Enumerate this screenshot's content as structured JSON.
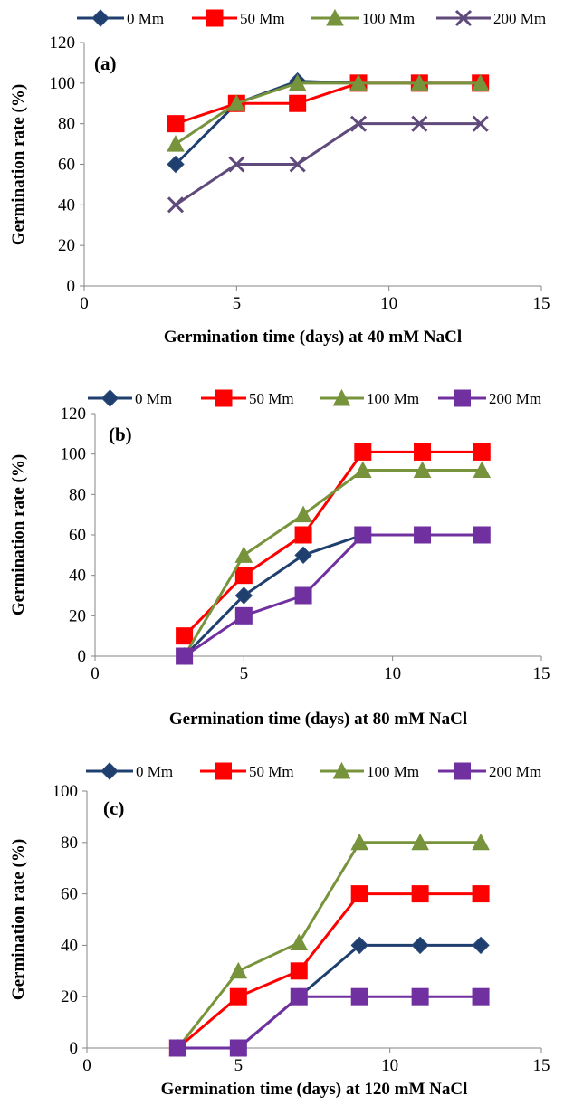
{
  "chart_data": [
    {
      "type": "line",
      "panel_label": "(a)",
      "xlabel": "Germination time (days) at 40 mM NaCl",
      "ylabel": "Germination rate (%)",
      "xlim": [
        0,
        15
      ],
      "ylim": [
        0,
        120
      ],
      "xticks": [
        0,
        5,
        10,
        15
      ],
      "yticks": [
        0,
        20,
        40,
        60,
        80,
        100,
        120
      ],
      "grid": false,
      "legend_position": "top",
      "x": [
        3,
        5,
        7,
        9,
        11,
        13
      ],
      "series": [
        {
          "name": "0 Mm",
          "color": "#1f3f6e",
          "marker": "diamond",
          "values": [
            60,
            90,
            101,
            100,
            100,
            100
          ]
        },
        {
          "name": "50 Mm",
          "color": "#ff0000",
          "marker": "square",
          "values": [
            80,
            90,
            90,
            100,
            100,
            100
          ]
        },
        {
          "name": "100 Mm",
          "color": "#77933c",
          "marker": "triangle",
          "values": [
            70,
            90,
            100,
            100,
            100,
            100
          ]
        },
        {
          "name": "200 Mm",
          "color": "#604a7b",
          "marker": "x",
          "values": [
            40,
            60,
            60,
            80,
            80,
            80
          ]
        }
      ]
    },
    {
      "type": "line",
      "panel_label": "(b)",
      "xlabel": "Germination time (days) at 80 mM NaCl",
      "ylabel": "Germination rate (%)",
      "xlim": [
        0,
        15
      ],
      "ylim": [
        0,
        120
      ],
      "xticks": [
        0,
        5,
        10,
        15
      ],
      "yticks": [
        0,
        20,
        40,
        60,
        80,
        100,
        120
      ],
      "grid": false,
      "legend_position": "top",
      "x": [
        3,
        5,
        7,
        9,
        11,
        13
      ],
      "series": [
        {
          "name": "0 Mm",
          "color": "#1f3f6e",
          "marker": "diamond",
          "values": [
            0,
            30,
            50,
            60,
            60,
            60
          ]
        },
        {
          "name": "50 Mm",
          "color": "#ff0000",
          "marker": "square",
          "values": [
            10,
            40,
            60,
            101,
            101,
            101
          ]
        },
        {
          "name": "100 Mm",
          "color": "#77933c",
          "marker": "triangle",
          "values": [
            0,
            50,
            70,
            92,
            92,
            92
          ]
        },
        {
          "name": "200 Mm",
          "color": "#7030a0",
          "marker": "square",
          "values": [
            0,
            20,
            30,
            60,
            60,
            60
          ]
        }
      ]
    },
    {
      "type": "line",
      "panel_label": "(c)",
      "xlabel": "Germination time (days) at 120 mM NaCl",
      "ylabel": "Germination rate (%)",
      "xlim": [
        0,
        15
      ],
      "ylim": [
        0,
        100
      ],
      "xticks": [
        0,
        5,
        10,
        15
      ],
      "yticks": [
        0,
        20,
        40,
        60,
        80,
        100
      ],
      "grid": false,
      "legend_position": "top",
      "x": [
        3,
        5,
        7,
        9,
        11,
        13
      ],
      "series": [
        {
          "name": "0 Mm",
          "color": "#1f3f6e",
          "marker": "diamond",
          "values": [
            0,
            0,
            20,
            40,
            40,
            40
          ]
        },
        {
          "name": "50 Mm",
          "color": "#ff0000",
          "marker": "square",
          "values": [
            0,
            20,
            30,
            60,
            60,
            60
          ]
        },
        {
          "name": "100 Mm",
          "color": "#77933c",
          "marker": "triangle",
          "values": [
            0,
            30,
            41,
            80,
            80,
            80
          ]
        },
        {
          "name": "200 Mm",
          "color": "#7030a0",
          "marker": "square",
          "values": [
            0,
            0,
            20,
            20,
            20,
            20
          ]
        }
      ]
    }
  ]
}
